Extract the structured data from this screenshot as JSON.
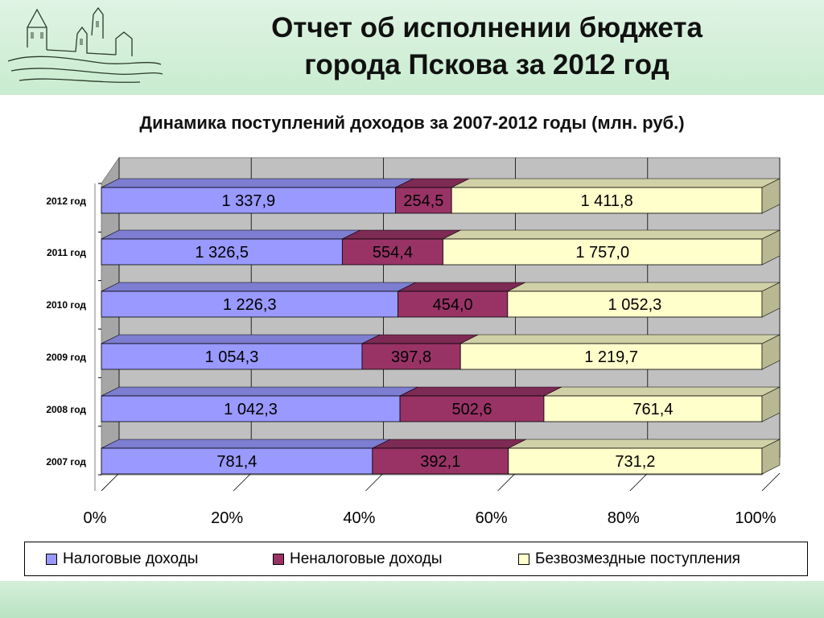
{
  "slide": {
    "title_line1": "Отчет об исполнении бюджета",
    "title_line2": "города Пскова за 2012 год"
  },
  "chart_data": {
    "type": "bar",
    "orientation": "horizontal",
    "stacked": "percent",
    "title": "Динамика поступлений доходов за 2007-2012 годы (млн. руб.)",
    "categories": [
      "2012 год",
      "2011 год",
      "2010 год",
      "2009 год",
      "2008 год",
      "2007 год"
    ],
    "series": [
      {
        "name": "Налоговые доходы",
        "color": "#9999ff",
        "values": [
          1337.9,
          1326.5,
          1226.3,
          1054.3,
          1042.3,
          781.4
        ],
        "labels": [
          "1 337,9",
          "1 326,5",
          "1 226,3",
          "1 054,3",
          "1 042,3",
          "781,4"
        ]
      },
      {
        "name": "Неналоговые доходы",
        "color": "#993366",
        "values": [
          254.5,
          554.4,
          454.0,
          397.8,
          502.6,
          392.1
        ],
        "labels": [
          "254,5",
          "554,4",
          "454,0",
          "397,8",
          "502,6",
          "392,1"
        ]
      },
      {
        "name": "Безвозмездные поступления",
        "color": "#ffffcc",
        "values": [
          1411.8,
          1757.0,
          1052.3,
          1219.7,
          761.4,
          731.2
        ],
        "labels": [
          "1 411,8",
          "1 757,0",
          "1 052,3",
          "1 219,7",
          "761,4",
          "731,2"
        ]
      }
    ],
    "xaxis_ticks": [
      "0%",
      "20%",
      "40%",
      "60%",
      "80%",
      "100%"
    ],
    "xlim": [
      0,
      100
    ],
    "grid": true,
    "legend_position": "bottom"
  }
}
